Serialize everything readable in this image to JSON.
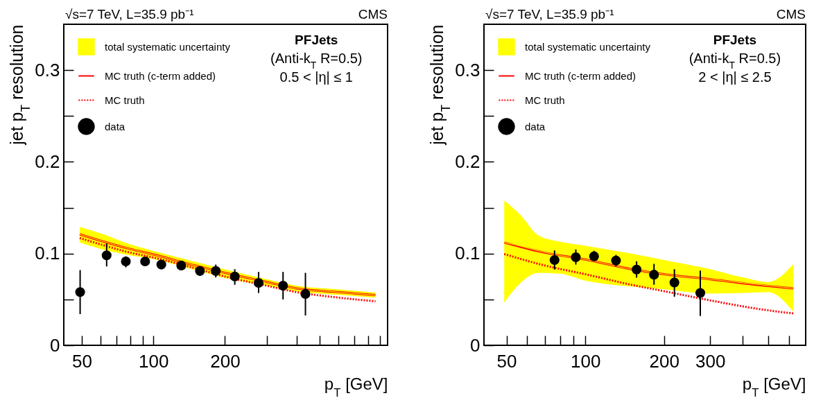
{
  "chart_data": [
    {
      "type": "scatter",
      "title": "√s=7 TeV, L=35.9 pb⁻¹",
      "annotations": [
        "CMS",
        "PFJets",
        "(Anti-k$_{T}$ R=0.5)",
        "0.5 < |η| ≤ 1"
      ],
      "xlabel": "p$_{T}$ [GeV]",
      "ylabel": "jet p$_{T}$ resolution",
      "log": "x",
      "grid": false,
      "legend": "top left",
      "xlim": [
        42,
        966
      ],
      "xticks": [
        50,
        {
          "value": 60,
          "label": null
        },
        {
          "value": 70,
          "label": null
        },
        {
          "value": 80,
          "label": null
        },
        {
          "value": 90,
          "label": null
        },
        100,
        200,
        {
          "value": 300,
          "label": null
        },
        {
          "value": 400,
          "label": null
        },
        {
          "value": 500,
          "label": null
        },
        {
          "value": 600,
          "label": null
        },
        {
          "value": 700,
          "label": null
        },
        {
          "value": 800,
          "label": null
        },
        {
          "value": 900,
          "label": null
        }
      ],
      "ylim": [
        0,
        0.35
      ],
      "yticks": [
        0,
        {
          "value": 0.05,
          "label": null
        },
        0.1,
        {
          "value": 0.15,
          "label": null
        },
        0.2,
        {
          "value": 0.25,
          "label": null
        },
        0.3
      ],
      "series": [
        {
          "name": "total systematic uncertainty",
          "type": "line",
          "color": "#ffff00",
          "x": [
            49,
            60,
            80,
            100,
            150,
            200,
            300,
            400,
            600,
            859
          ],
          "values": [
            0.121,
            0.114,
            0.105,
            0.099,
            0.087,
            0.079,
            0.069,
            0.062,
            0.058,
            0.0547
          ],
          "lower": [
            0.112,
            0.105,
            0.098,
            0.094,
            0.082,
            0.0734,
            0.065,
            0.0587,
            0.055,
            0.052
          ],
          "upper": [
            0.129,
            0.122,
            0.11,
            0.103,
            0.091,
            0.0827,
            0.072,
            0.065,
            0.061,
            0.0575
          ]
        },
        {
          "name": "MC truth (c-term added)",
          "type": "line",
          "color": "#ff0000",
          "line_style": "solid",
          "x": [
            49,
            60,
            80,
            100,
            150,
            200,
            300,
            400,
            600,
            859
          ],
          "values": [
            0.121,
            0.114,
            0.105,
            0.099,
            0.087,
            0.079,
            0.069,
            0.062,
            0.058,
            0.0547
          ]
        },
        {
          "name": "MC truth",
          "type": "line",
          "color": "#ff0000",
          "line_style": "dotted",
          "x": [
            49,
            60,
            80,
            100,
            150,
            200,
            300,
            400,
            600,
            859
          ],
          "values": [
            0.117,
            0.11,
            0.101,
            0.0957,
            0.084,
            0.075,
            0.065,
            0.058,
            0.052,
            0.048
          ]
        },
        {
          "name": "data",
          "type": "scatter",
          "color": "#000000",
          "marker": "circle",
          "x": [
            49.2,
            63.6,
            76.6,
            92.3,
            108,
            131,
            157,
            183,
            220,
            277,
            351,
            436
          ],
          "values": [
            0.058,
            0.098,
            0.0915,
            0.0915,
            0.088,
            0.087,
            0.081,
            0.081,
            0.075,
            0.068,
            0.065,
            0.056
          ],
          "errors": [
            [
              0.034,
              0.082
            ],
            [
              0.086,
              0.111
            ],
            [
              0.085,
              0.097
            ],
            [
              0.088,
              0.096
            ],
            [
              0.085,
              0.091
            ],
            [
              0.084,
              0.09
            ],
            [
              0.076,
              0.086
            ],
            [
              0.074,
              0.088
            ],
            [
              0.066,
              0.083
            ],
            [
              0.057,
              0.08
            ],
            [
              0.05,
              0.08
            ],
            [
              0.0325,
              0.079
            ]
          ]
        }
      ]
    },
    {
      "type": "scatter",
      "title": "√s=7 TeV, L=35.9 pb⁻¹",
      "annotations": [
        "CMS",
        "PFJets",
        "(Anti-k$_{T}$ R=0.5)",
        "2 < |η| ≤ 2.5"
      ],
      "xlabel": "p$_{T}$ [GeV]",
      "ylabel": "jet p$_{T}$ resolution",
      "log": "x",
      "grid": false,
      "legend": "top left",
      "xlim": [
        41,
        695
      ],
      "xticks": [
        50,
        {
          "value": 60,
          "label": null
        },
        {
          "value": 70,
          "label": null
        },
        {
          "value": 80,
          "label": null
        },
        {
          "value": 90,
          "label": null
        },
        100,
        200,
        300,
        {
          "value": 400,
          "label": null
        },
        {
          "value": 500,
          "label": null
        },
        {
          "value": 600,
          "label": null
        }
      ],
      "ylim": [
        0,
        0.35
      ],
      "yticks": [
        0,
        {
          "value": 0.05,
          "label": null
        },
        0.1,
        {
          "value": 0.15,
          "label": null
        },
        0.2,
        {
          "value": 0.25,
          "label": null
        },
        0.3
      ],
      "series": [
        {
          "name": "total systematic uncertainty",
          "type": "line",
          "color": "#ffff00",
          "x": [
            49,
            56.6,
            66,
            80,
            100,
            150,
            200,
            300,
            400,
            500,
            624
          ],
          "values": [
            0.112,
            0.108,
            0.103,
            0.098,
            0.0935,
            0.083,
            0.0775,
            0.072,
            0.068,
            0.065,
            0.062
          ],
          "lower": [
            0.0465,
            0.068,
            0.079,
            0.078,
            0.0705,
            0.064,
            0.061,
            0.0564,
            0.057,
            0.058,
            0.0366
          ],
          "upper": [
            0.158,
            0.142,
            0.12,
            0.113,
            0.1085,
            0.1,
            0.093,
            0.083,
            0.074,
            0.069,
            0.0887
          ]
        },
        {
          "name": "MC truth (c-term added)",
          "type": "line",
          "color": "#ff0000",
          "line_style": "solid",
          "x": [
            49,
            70,
            100,
            150,
            200,
            300,
            450,
            624
          ],
          "values": [
            0.112,
            0.101,
            0.0935,
            0.083,
            0.0775,
            0.072,
            0.066,
            0.062
          ]
        },
        {
          "name": "MC truth",
          "type": "line",
          "color": "#ff0000",
          "line_style": "dotted",
          "x": [
            49,
            70,
            100,
            150,
            200,
            300,
            450,
            624
          ],
          "values": [
            0.0995,
            0.087,
            0.0775,
            0.066,
            0.059,
            0.049,
            0.04,
            0.0347
          ]
        },
        {
          "name": "data",
          "type": "scatter",
          "color": "#000000",
          "marker": "circle",
          "x": [
            76.3,
            92,
            108,
            131,
            157,
            183,
            219,
            275
          ],
          "values": [
            0.093,
            0.096,
            0.097,
            0.0924,
            0.0826,
            0.077,
            0.0685,
            0.057
          ],
          "errors": [
            [
              0.0826,
              0.1034
            ],
            [
              0.088,
              0.1045
            ],
            [
              0.092,
              0.103
            ],
            [
              0.086,
              0.0986
            ],
            [
              0.0738,
              0.0916
            ],
            [
              0.066,
              0.0888
            ],
            [
              0.053,
              0.083
            ],
            [
              0.032,
              0.0814
            ]
          ]
        }
      ]
    }
  ]
}
